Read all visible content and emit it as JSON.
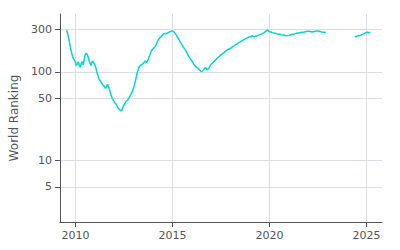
{
  "chart_data": {
    "type": "line",
    "ylabel": "World Ranking",
    "color": "#00D4D4",
    "log": "y",
    "grid": true,
    "xlim": [
      2009.2,
      2025.8
    ],
    "ylim": [
      2,
      450
    ],
    "xticks": [
      2010,
      2015,
      2020,
      2025
    ],
    "yticks": [
      5,
      10,
      50,
      100,
      300
    ],
    "x": [
      2009.55,
      2009.6,
      2009.65,
      2009.7,
      2009.75,
      2009.8,
      2009.85,
      2009.9,
      2009.95,
      2010.0,
      2010.05,
      2010.1,
      2010.15,
      2010.2,
      2010.25,
      2010.3,
      2010.35,
      2010.4,
      2010.45,
      2010.5,
      2010.55,
      2010.6,
      2010.65,
      2010.7,
      2010.75,
      2010.8,
      2010.85,
      2010.9,
      2010.95,
      2011.0,
      2011.05,
      2011.1,
      2011.15,
      2011.2,
      2011.25,
      2011.3,
      2011.35,
      2011.4,
      2011.45,
      2011.5,
      2011.55,
      2011.6,
      2011.65,
      2011.7,
      2011.75,
      2011.8,
      2011.85,
      2011.9,
      2011.95,
      2012.0,
      2012.05,
      2012.1,
      2012.15,
      2012.2,
      2012.25,
      2012.3,
      2012.35,
      2012.4,
      2012.45,
      2012.5,
      2012.55,
      2012.6,
      2012.65,
      2012.7,
      2012.75,
      2012.8,
      2012.85,
      2012.9,
      2012.95,
      2013.0,
      2013.05,
      2013.1,
      2013.15,
      2013.2,
      2013.25,
      2013.3,
      2013.35,
      2013.4,
      2013.45,
      2013.5,
      2013.55,
      2013.6,
      2013.65,
      2013.7,
      2013.75,
      2013.8,
      2013.85,
      2013.9,
      2013.95,
      2014.0,
      2014.05,
      2014.1,
      2014.15,
      2014.2,
      2014.25,
      2014.3,
      2014.35,
      2014.4,
      2014.45,
      2014.5,
      2014.55,
      2014.6,
      2014.65,
      2014.7,
      2014.75,
      2014.8,
      2014.85,
      2014.9,
      2014.95,
      2015.0,
      2015.05,
      2015.1,
      2015.15,
      2015.2,
      2015.25,
      2015.3,
      2015.35,
      2015.4,
      2015.45,
      2015.5,
      2015.55,
      2015.6,
      2015.65,
      2015.7,
      2015.75,
      2015.8,
      2015.85,
      2015.9,
      2015.95,
      2016.0,
      2016.05,
      2016.1,
      2016.15,
      2016.2,
      2016.25,
      2016.3,
      2016.35,
      2016.4,
      2016.45,
      2016.5,
      2016.55,
      2016.6,
      2016.65,
      2016.7,
      2016.75,
      2016.8,
      2016.85,
      2016.9,
      2016.95,
      2017.0,
      2017.05,
      2017.1,
      2017.15,
      2017.2,
      2017.25,
      2017.3,
      2017.35,
      2017.4,
      2017.45,
      2017.5,
      2017.55,
      2017.6,
      2017.65,
      2017.7,
      2017.75,
      2017.8,
      2017.85,
      2017.9,
      2017.95,
      2018.0,
      2018.05,
      2018.1,
      2018.15,
      2018.2,
      2018.25,
      2018.3,
      2018.35,
      2018.4,
      2018.45,
      2018.5,
      2018.55,
      2018.6,
      2018.65,
      2018.7,
      2018.75,
      2018.8,
      2018.85,
      2018.9,
      2018.95,
      2019.0,
      2019.05,
      2019.1,
      2019.15,
      2019.2,
      2019.25,
      2019.3,
      2019.35,
      2019.4,
      2019.45,
      2019.5,
      2019.55,
      2019.6,
      2019.65,
      2019.7,
      2019.75,
      2019.8,
      2019.85,
      2019.9,
      2019.95,
      2020.0,
      2020.1,
      2020.2,
      2020.3,
      2020.4,
      2020.5,
      2020.6,
      2020.7,
      2020.8,
      2020.9,
      2021.0,
      2021.1,
      2021.2,
      2021.3,
      2021.4,
      2021.5,
      2021.6,
      2021.7,
      2021.8,
      2021.9,
      2022.0,
      2022.1,
      2022.2,
      2022.3,
      2022.4,
      2022.5,
      2022.6,
      2022.7,
      2022.8,
      2022.9,
      null,
      2024.4,
      2024.5,
      2024.6,
      2024.7,
      2024.75,
      2024.8,
      2024.85,
      2024.9,
      2024.95,
      2025.0,
      2025.05,
      2025.1,
      2025.15,
      2025.2
    ],
    "values": [
      295,
      270,
      240,
      210,
      185,
      165,
      150,
      140,
      135,
      128,
      118,
      122,
      130,
      118,
      112,
      125,
      130,
      120,
      135,
      155,
      162,
      158,
      148,
      135,
      125,
      118,
      128,
      132,
      125,
      120,
      112,
      100,
      92,
      85,
      80,
      78,
      75,
      72,
      70,
      68,
      65,
      68,
      72,
      68,
      63,
      58,
      53,
      50,
      48,
      46,
      44,
      43,
      41,
      39,
      38,
      37,
      36,
      37,
      40,
      42,
      44,
      46,
      47,
      48,
      50,
      52,
      55,
      58,
      62,
      66,
      72,
      80,
      90,
      100,
      108,
      115,
      118,
      120,
      122,
      125,
      128,
      132,
      128,
      130,
      138,
      148,
      158,
      170,
      178,
      182,
      188,
      192,
      200,
      212,
      225,
      235,
      242,
      248,
      255,
      262,
      268,
      272,
      268,
      272,
      275,
      278,
      282,
      285,
      288,
      290,
      285,
      278,
      270,
      260,
      248,
      238,
      228,
      218,
      210,
      200,
      192,
      185,
      178,
      172,
      162,
      155,
      148,
      142,
      138,
      132,
      128,
      122,
      118,
      115,
      112,
      110,
      108,
      105,
      102,
      100,
      102,
      105,
      108,
      112,
      108,
      105,
      108,
      112,
      118,
      122,
      125,
      128,
      132,
      135,
      138,
      142,
      145,
      148,
      152,
      155,
      158,
      162,
      165,
      168,
      172,
      175,
      178,
      180,
      182,
      185,
      188,
      192,
      195,
      198,
      202,
      205,
      208,
      212,
      215,
      218,
      222,
      225,
      228,
      232,
      235,
      238,
      242,
      245,
      248,
      250,
      248,
      255,
      252,
      248,
      250,
      252,
      255,
      258,
      260,
      262,
      265,
      268,
      272,
      275,
      280,
      285,
      292,
      295,
      290,
      285,
      280,
      275,
      272,
      268,
      265,
      262,
      260,
      258,
      255,
      258,
      262,
      265,
      268,
      272,
      275,
      278,
      280,
      282,
      285,
      288,
      285,
      282,
      285,
      288,
      290,
      285,
      282,
      280,
      278,
      null,
      248,
      252,
      255,
      258,
      262,
      265,
      268,
      272,
      275,
      278,
      280,
      275,
      278,
      280
    ]
  }
}
